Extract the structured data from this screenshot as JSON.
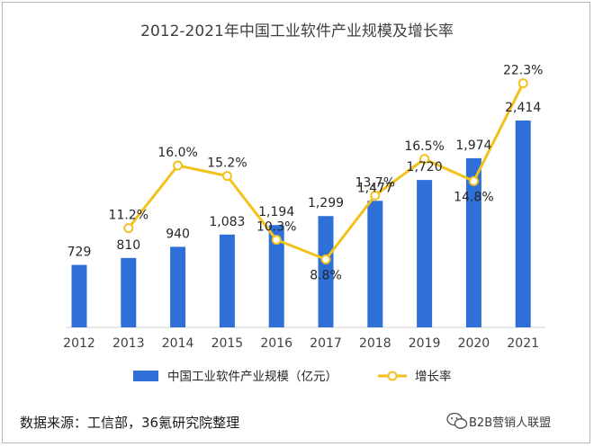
{
  "chart_data": {
    "type": "bar",
    "title": "2012-2021年中国工业软件产业规模及增长率",
    "categories": [
      "2012",
      "2013",
      "2014",
      "2015",
      "2016",
      "2017",
      "2018",
      "2019",
      "2020",
      "2021"
    ],
    "series": [
      {
        "name": "中国工业软件产业规模（亿元）",
        "type": "bar",
        "color": "#2e6fd8",
        "values": [
          729,
          810,
          940,
          1083,
          1194,
          1299,
          1477,
          1720,
          1974,
          2414
        ],
        "labels": [
          "729",
          "810",
          "940",
          "1,083",
          "1,194",
          "1,299",
          "1,477",
          "1,720",
          "1,974",
          "2,414"
        ]
      },
      {
        "name": "增长率",
        "type": "line",
        "color": "#f2c21b",
        "values": [
          null,
          11.2,
          16.0,
          15.2,
          10.3,
          8.8,
          13.7,
          16.5,
          14.8,
          22.3
        ],
        "labels": [
          "",
          "11.2%",
          "16.0%",
          "15.2%",
          "10.3%",
          "8.8%",
          "13.7%",
          "16.5%",
          "14.8%",
          "22.3%"
        ]
      }
    ],
    "legend_position": "bottom",
    "grid": false
  },
  "source": "数据来源：工信部，36氪研究院整理",
  "watermark": "B2B营销人联盟"
}
